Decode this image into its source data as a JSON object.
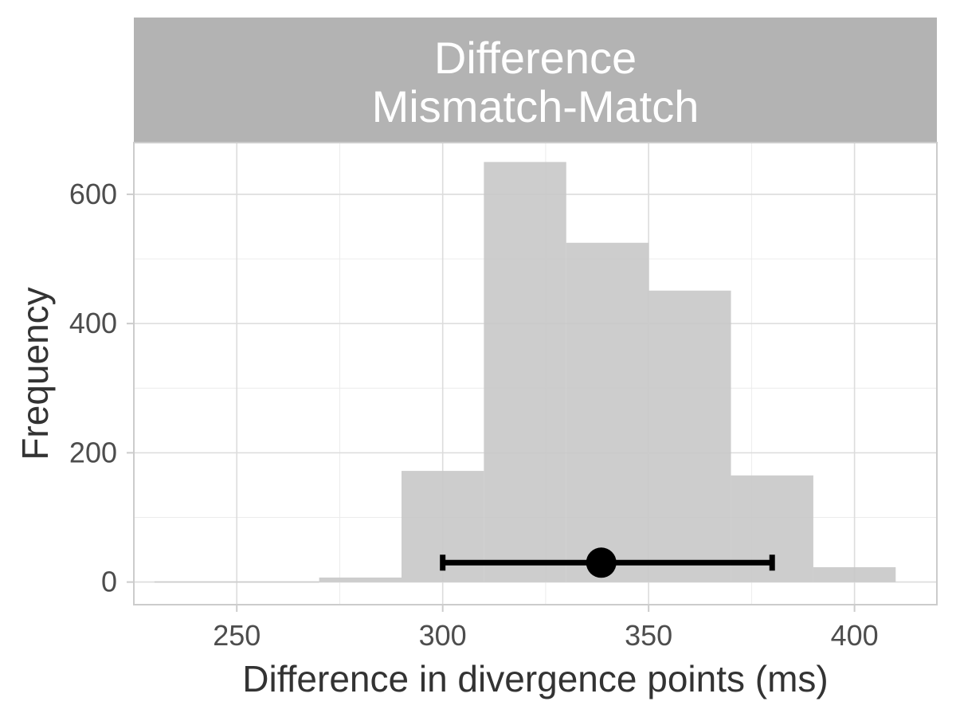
{
  "chart_data": {
    "type": "bar",
    "facet_label_lines": [
      "Difference",
      "Mismatch-Match"
    ],
    "xlabel": "Difference in divergence points (ms)",
    "ylabel": "Frequency",
    "x_ticks": [
      250,
      300,
      350,
      400
    ],
    "y_ticks": [
      0,
      200,
      400,
      600
    ],
    "xlim": [
      225,
      420
    ],
    "ylim": [
      -35,
      680
    ],
    "bins": [
      {
        "start": 230,
        "end": 250,
        "count": 1
      },
      {
        "start": 250,
        "end": 270,
        "count": 1
      },
      {
        "start": 270,
        "end": 290,
        "count": 7
      },
      {
        "start": 290,
        "end": 310,
        "count": 172
      },
      {
        "start": 310,
        "end": 330,
        "count": 650
      },
      {
        "start": 330,
        "end": 350,
        "count": 525
      },
      {
        "start": 350,
        "end": 370,
        "count": 451
      },
      {
        "start": 370,
        "end": 390,
        "count": 165
      },
      {
        "start": 390,
        "end": 410,
        "count": 23
      }
    ],
    "interval": {
      "mean": 338.5,
      "lower": 300,
      "upper": 380,
      "y": 30
    },
    "colors": {
      "bar": "#c8c8c8",
      "strip": "#b3b3b3",
      "grid_major": "#dcdcdc",
      "grid_minor": "#ececec",
      "interval": "#000000"
    },
    "grid": true
  }
}
